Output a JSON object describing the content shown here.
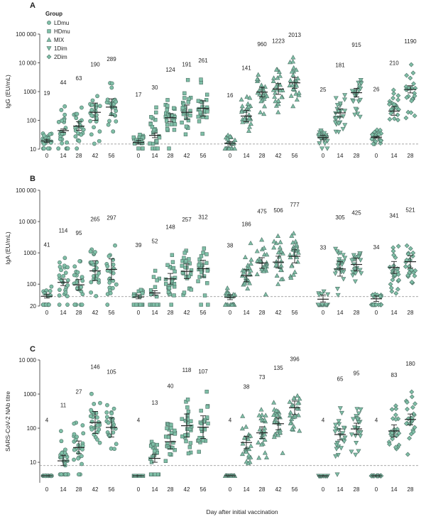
{
  "legend": {
    "title": "Group",
    "items": [
      {
        "label": "LDmu",
        "marker": "circle"
      },
      {
        "label": "HDmu",
        "marker": "square"
      },
      {
        "label": "MIX",
        "marker": "triangle-up"
      },
      {
        "label": "1Dim",
        "marker": "triangle-down"
      },
      {
        "label": "2Dim",
        "marker": "diamond"
      }
    ]
  },
  "xlabel": "Day after initial vaccination",
  "colors": {
    "fill": "#7fbfa7",
    "stroke": "#4c6e63",
    "ref_line": "#8a8a8a"
  },
  "chart_data": [
    {
      "panel": "A",
      "type": "scatter",
      "ylabel": "IgG (EU/mL)",
      "yscale": "log",
      "ylim": [
        10,
        100000
      ],
      "yticks": [
        10,
        100,
        1000,
        10000,
        100000
      ],
      "ytick_labels": [
        "10",
        "100",
        "1000",
        "10 000",
        "100 000"
      ],
      "reference_line": 15,
      "groups": [
        {
          "name": "LDmu",
          "marker": "circle",
          "days": [
            "0",
            "14",
            "28",
            "42",
            "56"
          ],
          "gmt": [
            19,
            44,
            63,
            190,
            289
          ],
          "ci_low": [
            17,
            38,
            45,
            100,
            150
          ],
          "ci_high": [
            22,
            50,
            90,
            400,
            560
          ]
        },
        {
          "name": "HDmu",
          "marker": "square",
          "days": [
            "0",
            "14",
            "28",
            "42",
            "56"
          ],
          "gmt": [
            17,
            30,
            124,
            191,
            261
          ],
          "ci_low": [
            15,
            25,
            90,
            110,
            140
          ],
          "ci_high": [
            20,
            36,
            170,
            340,
            480
          ]
        },
        {
          "name": "MIX",
          "marker": "triangle-up",
          "days": [
            "0",
            "14",
            "28",
            "42",
            "56"
          ],
          "gmt": [
            16,
            141,
            960,
            1223,
            2013
          ],
          "ci_low": [
            14,
            90,
            650,
            800,
            1300
          ],
          "ci_high": [
            18,
            220,
            1400,
            1900,
            3100
          ]
        },
        {
          "name": "1Dim",
          "marker": "triangle-down",
          "days": [
            "0",
            "14",
            "28"
          ],
          "gmt": [
            25,
            181,
            915
          ],
          "ci_low": [
            21,
            130,
            650
          ],
          "ci_high": [
            30,
            250,
            1300
          ]
        },
        {
          "name": "2Dim",
          "marker": "diamond",
          "days": [
            "0",
            "14",
            "28"
          ],
          "gmt": [
            26,
            210,
            1190
          ],
          "ci_low": [
            24,
            150,
            900
          ],
          "ci_high": [
            28,
            300,
            1600
          ]
        }
      ]
    },
    {
      "panel": "B",
      "type": "scatter",
      "ylabel": "IgA (EU/mL)",
      "yscale": "log",
      "ylim": [
        20,
        100000
      ],
      "yticks": [
        20,
        100,
        1000,
        10000,
        100000
      ],
      "ytick_labels": [
        "20",
        "100",
        "1000",
        "10 000",
        "100 000"
      ],
      "reference_line": 40,
      "groups": [
        {
          "name": "LDmu",
          "marker": "circle",
          "days": [
            "0",
            "14",
            "28",
            "42",
            "56"
          ],
          "gmt": [
            41,
            114,
            95,
            265,
            297
          ],
          "ci_low": [
            36,
            90,
            65,
            130,
            140
          ],
          "ci_high": [
            48,
            145,
            140,
            560,
            640
          ]
        },
        {
          "name": "HDmu",
          "marker": "square",
          "days": [
            "0",
            "14",
            "28",
            "42",
            "56"
          ],
          "gmt": [
            39,
            52,
            148,
            257,
            312
          ],
          "ci_low": [
            34,
            44,
            100,
            150,
            170
          ],
          "ci_high": [
            45,
            62,
            220,
            440,
            580
          ]
        },
        {
          "name": "MIX",
          "marker": "triangle-up",
          "days": [
            "0",
            "14",
            "28",
            "42",
            "56"
          ],
          "gmt": [
            38,
            186,
            475,
            506,
            777
          ],
          "ci_low": [
            32,
            120,
            320,
            330,
            480
          ],
          "ci_high": [
            46,
            290,
            700,
            780,
            1250
          ]
        },
        {
          "name": "1Dim",
          "marker": "triangle-down",
          "days": [
            "0",
            "14",
            "28"
          ],
          "gmt": [
            33,
            305,
            425
          ],
          "ci_low": [
            27,
            180,
            270
          ],
          "ci_high": [
            45,
            520,
            670
          ]
        },
        {
          "name": "2Dim",
          "marker": "diamond",
          "days": [
            "0",
            "14",
            "28"
          ],
          "gmt": [
            34,
            341,
            521
          ],
          "ci_low": [
            28,
            220,
            330
          ],
          "ci_high": [
            42,
            530,
            820
          ]
        }
      ]
    },
    {
      "panel": "C",
      "type": "scatter",
      "ylabel": "SARS-CoV-2 NAb titre",
      "yscale": "log",
      "ylim": [
        2.5,
        10000
      ],
      "yticks": [
        10,
        100,
        1000,
        10000
      ],
      "ytick_labels": [
        "10",
        "100",
        "1000",
        "10 000"
      ],
      "reference_line": 8,
      "groups": [
        {
          "name": "LDmu",
          "marker": "circle",
          "days": [
            "0",
            "14",
            "28",
            "42",
            "56"
          ],
          "gmt": [
            4,
            11,
            27,
            146,
            105
          ],
          "ci_low": [
            4,
            8,
            18,
            70,
            55
          ],
          "ci_high": [
            4,
            16,
            42,
            310,
            200
          ]
        },
        {
          "name": "HDmu",
          "marker": "square",
          "days": [
            "0",
            "14",
            "28",
            "42",
            "56"
          ],
          "gmt": [
            4,
            13,
            40,
            118,
            107
          ],
          "ci_low": [
            4,
            10,
            25,
            55,
            50
          ],
          "ci_high": [
            4,
            17,
            65,
            260,
            230
          ]
        },
        {
          "name": "MIX",
          "marker": "triangle-up",
          "days": [
            "0",
            "14",
            "28",
            "42",
            "56"
          ],
          "gmt": [
            4,
            38,
            73,
            135,
            396
          ],
          "ci_low": [
            4,
            25,
            50,
            90,
            250
          ],
          "ci_high": [
            4,
            58,
            110,
            200,
            620
          ]
        },
        {
          "name": "1Dim",
          "marker": "triangle-down",
          "days": [
            "0",
            "14",
            "28"
          ],
          "gmt": [
            4,
            65,
            95
          ],
          "ci_low": [
            4,
            45,
            65
          ],
          "ci_high": [
            4,
            95,
            140
          ]
        },
        {
          "name": "2Dim",
          "marker": "diamond",
          "days": [
            "0",
            "14",
            "28"
          ],
          "gmt": [
            4,
            83,
            180
          ],
          "ci_low": [
            4,
            55,
            125
          ],
          "ci_high": [
            4,
            125,
            260
          ]
        }
      ]
    }
  ]
}
